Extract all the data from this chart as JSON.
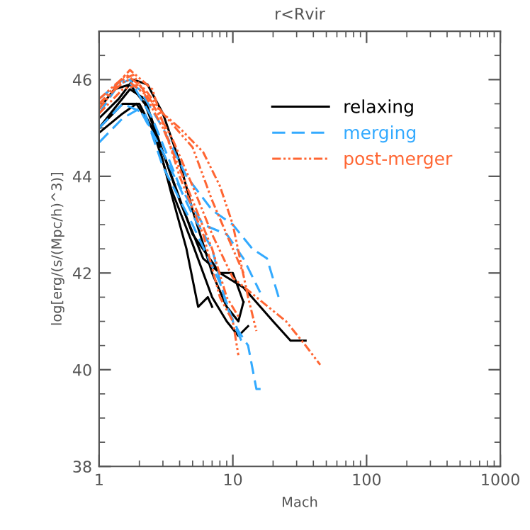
{
  "chart_data": {
    "type": "line",
    "title": "r<Rvir",
    "xlabel": "Mach",
    "ylabel": "log[erg/(s/(Mpc/h)^3)]",
    "log": "x",
    "xlim": [
      1,
      1000
    ],
    "ylim": [
      38,
      47
    ],
    "xticks": [
      1,
      10,
      100,
      1000
    ],
    "yticks": [
      38,
      40,
      42,
      44,
      46
    ],
    "grid": false,
    "legend": "top right",
    "marker": "none",
    "series": [
      {
        "name": "relaxing",
        "color": "#000000",
        "line_style": "solid",
        "x": [
          1,
          1.3,
          1.7,
          2.2,
          3,
          5,
          8,
          12,
          20,
          27,
          35
        ],
        "values": [
          45.0,
          45.4,
          45.8,
          45.6,
          44.5,
          42.8,
          42.0,
          41.7,
          41.0,
          40.6,
          40.6
        ]
      },
      {
        "color": "#000000",
        "line_style": "solid",
        "x": [
          1,
          1.4,
          1.8,
          2.3,
          3,
          4,
          5,
          7,
          9,
          11,
          12
        ],
        "values": [
          45.2,
          45.6,
          46.0,
          45.9,
          45.3,
          44.3,
          43.3,
          42.0,
          41.3,
          41.0,
          41.4
        ]
      },
      {
        "color": "#000000",
        "line_style": "solid",
        "x": [
          1,
          1.5,
          1.9,
          2.5,
          3.5,
          5,
          7,
          9,
          11,
          13
        ],
        "values": [
          44.9,
          45.3,
          45.5,
          45.0,
          43.7,
          42.6,
          41.5,
          41.0,
          40.7,
          40.9
        ]
      },
      {
        "color": "#000000",
        "line_style": "solid",
        "x": [
          1,
          1.5,
          2,
          2.7,
          3.5,
          4.5,
          5.5,
          6.5,
          7
        ],
        "values": [
          45.0,
          45.5,
          45.5,
          44.8,
          43.6,
          42.5,
          41.3,
          41.5,
          41.3
        ]
      },
      {
        "color": "#000000",
        "line_style": "solid",
        "x": [
          1,
          1.3,
          1.7,
          2.2,
          3,
          4,
          6,
          8,
          10,
          12
        ],
        "values": [
          45.4,
          45.8,
          45.9,
          45.5,
          44.5,
          43.5,
          42.3,
          42.0,
          42.0,
          41.4
        ]
      },
      {
        "name": "merging",
        "color": "#33aaff",
        "line_style": "dashed",
        "x": [
          1,
          1.5,
          2,
          3,
          5,
          7,
          9,
          11,
          13,
          15,
          17
        ],
        "values": [
          44.7,
          45.2,
          45.4,
          44.5,
          43.2,
          42.5,
          41.3,
          40.8,
          40.5,
          39.6,
          39.6
        ]
      },
      {
        "color": "#33aaff",
        "line_style": "dashed",
        "x": [
          1,
          1.4,
          1.7,
          2.5,
          4,
          6,
          9,
          12,
          16
        ],
        "values": [
          45.3,
          45.9,
          46.0,
          45.2,
          43.8,
          43.0,
          42.8,
          42.3,
          41.6
        ]
      },
      {
        "color": "#33aaff",
        "line_style": "dashed",
        "x": [
          1,
          1.5,
          2,
          3,
          4.5,
          7,
          10,
          14,
          18,
          22
        ],
        "values": [
          45.6,
          46.0,
          45.8,
          45.0,
          44.0,
          43.3,
          43.0,
          42.5,
          42.3,
          41.5
        ]
      },
      {
        "color": "#33aaff",
        "line_style": "dashed",
        "x": [
          1,
          1.5,
          2.2,
          3,
          5,
          8,
          10,
          12
        ],
        "values": [
          45.0,
          45.5,
          45.3,
          44.2,
          43.0,
          41.8,
          41.0,
          40.5
        ]
      },
      {
        "name": "post-merger",
        "color": "#ff6633",
        "line_style": "dashdotdot",
        "x": [
          1,
          1.5,
          1.8,
          2.5,
          3.5,
          5,
          7,
          10,
          15,
          25,
          35,
          45
        ],
        "values": [
          45.4,
          46.0,
          46.1,
          45.5,
          44.8,
          43.8,
          42.8,
          41.9,
          41.5,
          41.0,
          40.5,
          40.1
        ]
      },
      {
        "color": "#ff6633",
        "line_style": "dashdotdot",
        "x": [
          1,
          1.6,
          2.2,
          3,
          5,
          7,
          10,
          12
        ],
        "values": [
          45.5,
          46.0,
          45.7,
          45.3,
          44.6,
          43.5,
          42.5,
          42.0
        ]
      },
      {
        "color": "#ff6633",
        "line_style": "dashdotdot",
        "x": [
          1,
          1.7,
          2.5,
          4,
          6,
          8,
          10,
          11
        ],
        "values": [
          45.5,
          46.2,
          45.8,
          44.0,
          42.8,
          41.5,
          41.0,
          40.3
        ]
      },
      {
        "color": "#ff6633",
        "line_style": "dashdotdot",
        "x": [
          1,
          1.5,
          2,
          3,
          5,
          7,
          9,
          11
        ],
        "values": [
          45.3,
          45.8,
          45.9,
          45.0,
          43.5,
          42.5,
          41.5,
          41.1
        ]
      },
      {
        "color": "#ff6633",
        "line_style": "dashdotdot",
        "x": [
          1,
          1.6,
          2.2,
          3,
          4,
          6,
          8,
          10,
          13,
          15
        ],
        "values": [
          45.6,
          46.1,
          45.8,
          45.3,
          45.0,
          44.5,
          43.8,
          43.0,
          41.5,
          40.8
        ]
      }
    ]
  }
}
